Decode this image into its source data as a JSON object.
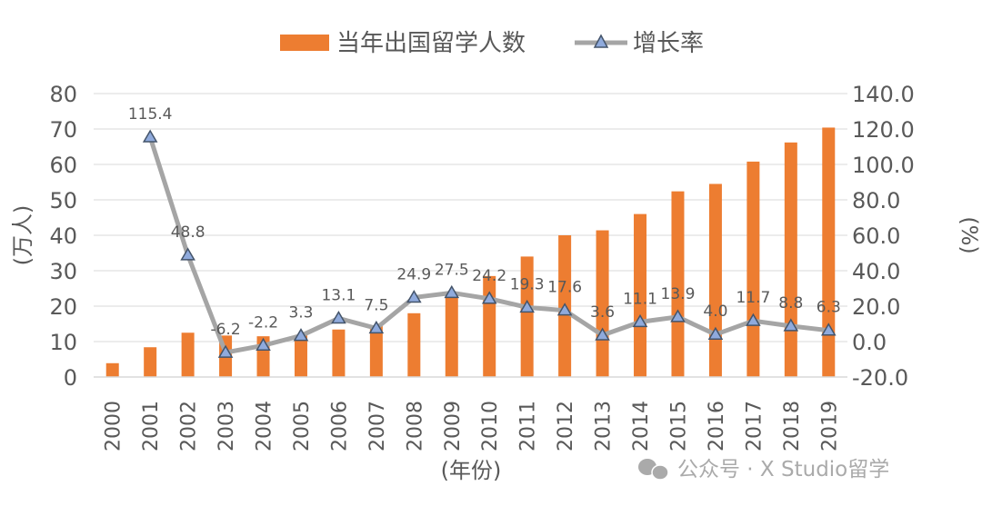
{
  "chart_data": {
    "type": "bar",
    "title": "",
    "categories": [
      "2000",
      "2001",
      "2002",
      "2003",
      "2004",
      "2005",
      "2006",
      "2007",
      "2008",
      "2009",
      "2010",
      "2011",
      "2012",
      "2013",
      "2014",
      "2015",
      "2016",
      "2017",
      "2018",
      "2019"
    ],
    "series": [
      {
        "name": "当年出国留学人数",
        "type": "bar",
        "axis": "left",
        "color": "#ED7D31",
        "values": [
          3.9,
          8.4,
          12.5,
          11.7,
          11.5,
          11.9,
          13.4,
          14.4,
          18.0,
          22.9,
          28.5,
          34.0,
          40.0,
          41.4,
          46.0,
          52.4,
          54.5,
          60.8,
          66.2,
          70.4
        ]
      },
      {
        "name": "增长率",
        "type": "line",
        "axis": "right",
        "color": "#A5A5A5",
        "marker_color": "#8FAADC",
        "values": [
          null,
          115.4,
          48.8,
          -6.2,
          -2.2,
          3.3,
          13.1,
          7.5,
          24.9,
          27.5,
          24.2,
          19.3,
          17.6,
          3.6,
          11.1,
          13.9,
          4.0,
          11.7,
          8.8,
          6.3
        ],
        "labels": [
          "",
          "115.4",
          "48.8",
          "-6.2",
          "-2.2",
          "3.3",
          "13.1",
          "7.5",
          "24.9",
          "27.5",
          "24.2",
          "19.3",
          "17.6",
          "3.6",
          "11.1",
          "13.9",
          "4.0",
          "11.7",
          "8.8",
          "6.3"
        ]
      }
    ],
    "xlabel": "(年份)",
    "ylabel": "(万人)",
    "y2label": "(%)",
    "ylim": [
      0,
      80
    ],
    "y2lim": [
      -20,
      140
    ],
    "yticks": [
      "0",
      "10",
      "20",
      "30",
      "40",
      "50",
      "60",
      "70",
      "80"
    ],
    "y2ticks": [
      "-20.0",
      "0.0",
      "20.0",
      "40.0",
      "60.0",
      "80.0",
      "100.0",
      "120.0",
      "140.0"
    ],
    "grid": true,
    "legend": "top-center"
  },
  "watermark": "公众号 · X Studio留学"
}
